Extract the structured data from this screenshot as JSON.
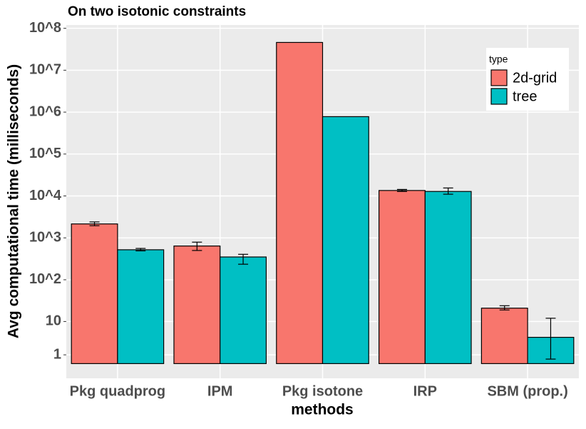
{
  "chart_data": {
    "type": "bar",
    "title": "On two isotonic constraints",
    "x_label": "methods",
    "y_label": "Avg computational time (milliseconds)",
    "y_scale": "pseudo_log",
    "categories": [
      "Pkg quadprog",
      "IPM",
      "Pkg isotone",
      "IRP",
      "SBM (prop.)"
    ],
    "series": [
      {
        "name": "2d-grid",
        "color": "#f8766d",
        "values": [
          2150,
          640,
          46000000,
          13500,
          21
        ],
        "lower": [
          1950,
          500,
          null,
          12800,
          19
        ],
        "upper": [
          2400,
          790,
          null,
          14300,
          24
        ]
      },
      {
        "name": "tree",
        "color": "#00bfc4",
        "values": [
          520,
          350,
          780000,
          12800,
          4
        ],
        "lower": [
          490,
          235,
          null,
          11000,
          0.5
        ],
        "upper": [
          560,
          405,
          null,
          15500,
          12
        ]
      }
    ],
    "legend_title": "type",
    "legend_position": "right-inside",
    "ylim": [
      -1.8,
      120000000
    ],
    "yticks": [
      1,
      10,
      {
        "value": 100,
        "label": "10^2"
      },
      {
        "value": 1000,
        "label": "10^3"
      },
      {
        "value": 10000,
        "label": "10^4"
      },
      {
        "value": 100000,
        "label": "10^5"
      },
      {
        "value": 1000000,
        "label": "10^6"
      },
      {
        "value": 10000000,
        "label": "10^7"
      },
      {
        "value": 100000000,
        "label": "10^8"
      }
    ],
    "grid": true
  }
}
